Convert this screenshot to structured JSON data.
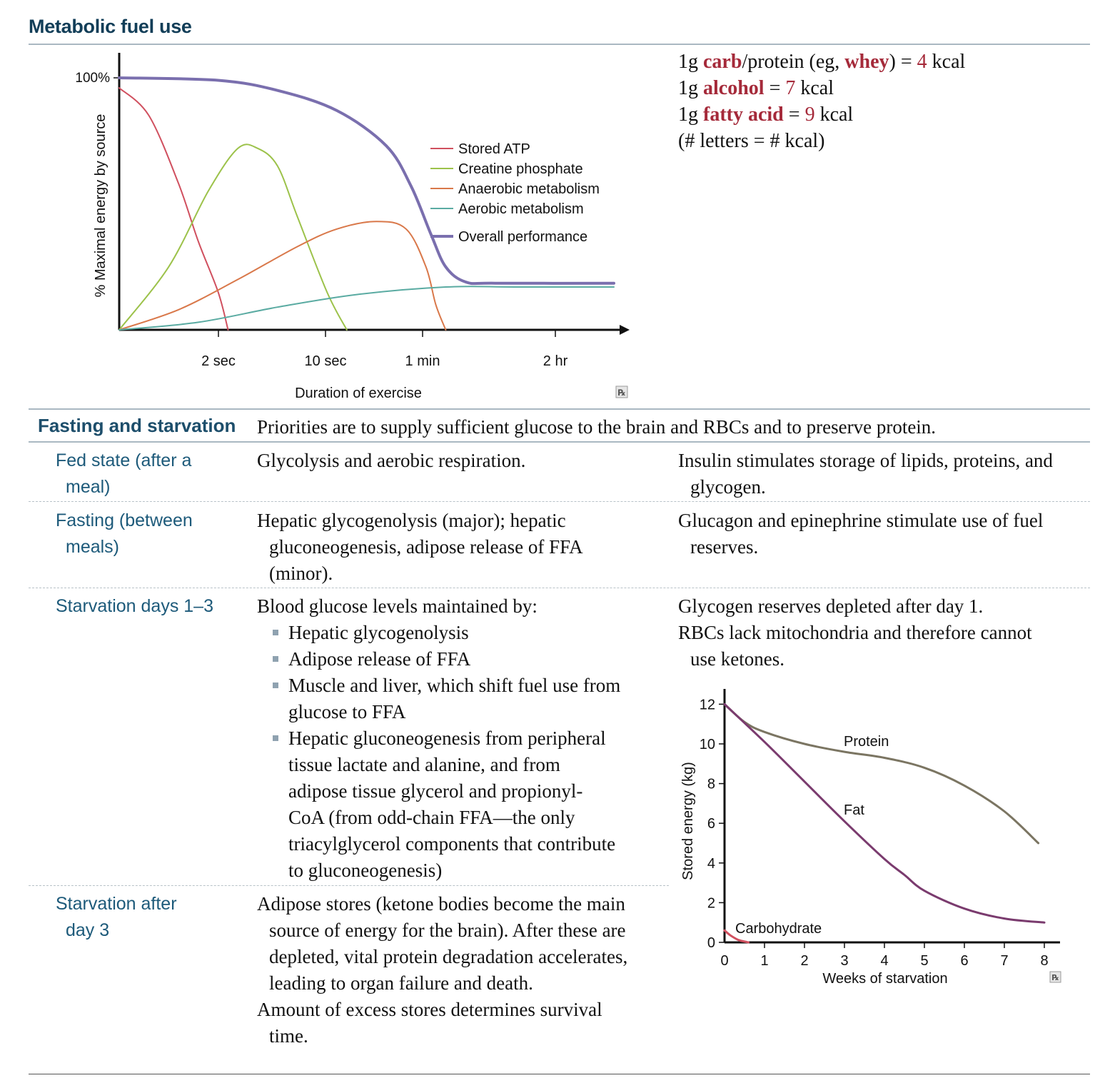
{
  "page_title": "Metabolic fuel use",
  "kcal_facts": {
    "line1": {
      "p1": "1g ",
      "carb": "carb",
      "p2": "/protein (eg, ",
      "whey": "whey",
      "p3": ") = ",
      "num": "4",
      "p4": " kcal"
    },
    "line2": {
      "p1": "1g ",
      "alcohol": "alcohol",
      "p2": " = ",
      "num": "7",
      "p3": " kcal"
    },
    "line3": {
      "p1": "1g ",
      "fatty_acid": "fatty acid",
      "p2": " = ",
      "num": "9",
      "p3": " kcal"
    },
    "line4": "(# letters = # kcal)"
  },
  "colors": {
    "accent_red": "#a52a3a",
    "heading_blue": "#1d5a7a",
    "stored_atp": "#d0505f",
    "creatine_phosphate": "#9cc24a",
    "anaerobic": "#d9784a",
    "aerobic": "#5aaba2",
    "overall": "#7a6fae",
    "protein": "#7b7562",
    "fat": "#7a3b6e",
    "carbohydrate": "#d0505f"
  },
  "chart_data": [
    {
      "type": "line",
      "ylabel": "% Maximal energy by source",
      "xlabel": "Duration of exercise",
      "y_tick_label": "100%",
      "x_ticks": [
        "2 sec",
        "10 sec",
        "1 min",
        "2 hr"
      ],
      "ylim": [
        0,
        100
      ],
      "series": [
        {
          "name": "Stored ATP",
          "points": [
            [
              0,
              96
            ],
            [
              0.3,
              85
            ],
            [
              0.6,
              58
            ],
            [
              0.8,
              35
            ],
            [
              1.0,
              15
            ],
            [
              1.1,
              0
            ]
          ]
        },
        {
          "name": "Creatine phosphate",
          "points": [
            [
              0,
              0
            ],
            [
              0.5,
              25
            ],
            [
              0.9,
              55
            ],
            [
              1.2,
              72
            ],
            [
              1.4,
              72
            ],
            [
              1.6,
              65
            ],
            [
              1.8,
              45
            ],
            [
              2.1,
              15
            ],
            [
              2.3,
              0
            ]
          ]
        },
        {
          "name": "Anaerobic metabolism",
          "points": [
            [
              0,
              0
            ],
            [
              0.6,
              8
            ],
            [
              1.2,
              20
            ],
            [
              1.8,
              33
            ],
            [
              2.2,
              40
            ],
            [
              2.6,
              43
            ],
            [
              2.9,
              40
            ],
            [
              3.1,
              25
            ],
            [
              3.2,
              10
            ],
            [
              3.3,
              0
            ]
          ]
        },
        {
          "name": "Aerobic metabolism",
          "points": [
            [
              0,
              0
            ],
            [
              0.8,
              3
            ],
            [
              1.6,
              9
            ],
            [
              2.4,
              14
            ],
            [
              3.3,
              17
            ],
            [
              4.0,
              17
            ],
            [
              5.0,
              17
            ]
          ]
        },
        {
          "name": "Overall performance",
          "points": [
            [
              0,
              100
            ],
            [
              1.0,
              99
            ],
            [
              1.6,
              95
            ],
            [
              2.2,
              87
            ],
            [
              2.7,
              73
            ],
            [
              2.95,
              57
            ],
            [
              3.15,
              38
            ],
            [
              3.3,
              25
            ],
            [
              3.5,
              19
            ],
            [
              3.8,
              18.5
            ],
            [
              5.0,
              18.5
            ]
          ]
        }
      ]
    },
    {
      "type": "line",
      "ylabel": "Stored energy (kg)",
      "xlabel": "Weeks of starvation",
      "x_ticks": [
        0,
        1,
        2,
        3,
        4,
        5,
        6,
        7,
        8
      ],
      "y_ticks": [
        0,
        2,
        4,
        6,
        8,
        10,
        12
      ],
      "xlim": [
        0,
        8
      ],
      "ylim": [
        0,
        12
      ],
      "series": [
        {
          "name": "Protein",
          "points": [
            [
              0,
              12
            ],
            [
              0.5,
              11.1
            ],
            [
              1,
              10.6
            ],
            [
              2,
              10
            ],
            [
              3,
              9.6
            ],
            [
              4,
              9.3
            ],
            [
              5,
              8.8
            ],
            [
              6,
              7.9
            ],
            [
              7,
              6.6
            ],
            [
              7.85,
              5
            ]
          ]
        },
        {
          "name": "Fat",
          "points": [
            [
              0,
              12
            ],
            [
              1,
              10.1
            ],
            [
              2,
              8.1
            ],
            [
              3,
              6.1
            ],
            [
              4,
              4.2
            ],
            [
              4.5,
              3.4
            ],
            [
              5,
              2.6
            ],
            [
              6,
              1.7
            ],
            [
              7,
              1.2
            ],
            [
              8,
              1.0
            ]
          ]
        },
        {
          "name": "Carbohydrate",
          "points": [
            [
              0,
              0.6
            ],
            [
              0.15,
              0.35
            ],
            [
              0.35,
              0.12
            ],
            [
              0.55,
              0.02
            ],
            [
              0.6,
              0
            ]
          ]
        }
      ]
    }
  ],
  "section": {
    "heading": "Fasting and starvation",
    "summary": "Priorities are to supply sufficient glucose to the brain and RBCs and to preserve protein."
  },
  "rows": [
    {
      "head_l1": "Fed state (after a",
      "head_l2": "meal)",
      "col2": [
        "Glycolysis and aerobic respiration."
      ],
      "col3": [
        "Insulin stimulates storage of lipids, proteins, and",
        "glycogen."
      ]
    },
    {
      "head_l1": "Fasting (between",
      "head_l2": "meals)",
      "col2": [
        "Hepatic glycogenolysis (major); hepatic",
        "gluconeogenesis, adipose release of FFA",
        "(minor)."
      ],
      "col3": [
        "Glucagon and epinephrine stimulate use of fuel",
        "reserves."
      ]
    },
    {
      "head_l1": "Starvation days 1–3",
      "col2_intro": "Blood glucose levels maintained by:",
      "bullets": [
        [
          "Hepatic glycogenolysis"
        ],
        [
          "Adipose release of FFA"
        ],
        [
          "Muscle and liver, which shift fuel use from",
          "glucose to FFA"
        ],
        [
          "Hepatic gluconeogenesis from peripheral",
          "tissue lactate and alanine, and from",
          "adipose tissue glycerol and propionyl-",
          "CoA (from odd-chain FFA—the only",
          "triacylglycerol components that contribute",
          "to gluconeogenesis)"
        ]
      ],
      "col3_p1": "Glycogen reserves depleted after day 1.",
      "col3_p2": [
        "RBCs lack mitochondria and therefore cannot",
        "use ketones."
      ]
    },
    {
      "head_l1": "Starvation after",
      "head_l2": "day 3",
      "col2_p1": [
        "Adipose stores (ketone bodies become the main",
        "source of energy for the brain). After these are",
        "depleted, vital protein degradation accelerates,",
        "leading to organ failure and death."
      ],
      "col2_p2": [
        "Amount of excess stores determines survival",
        "time."
      ]
    }
  ],
  "icons": {
    "rx_icon": "prescription-rx-icon"
  }
}
